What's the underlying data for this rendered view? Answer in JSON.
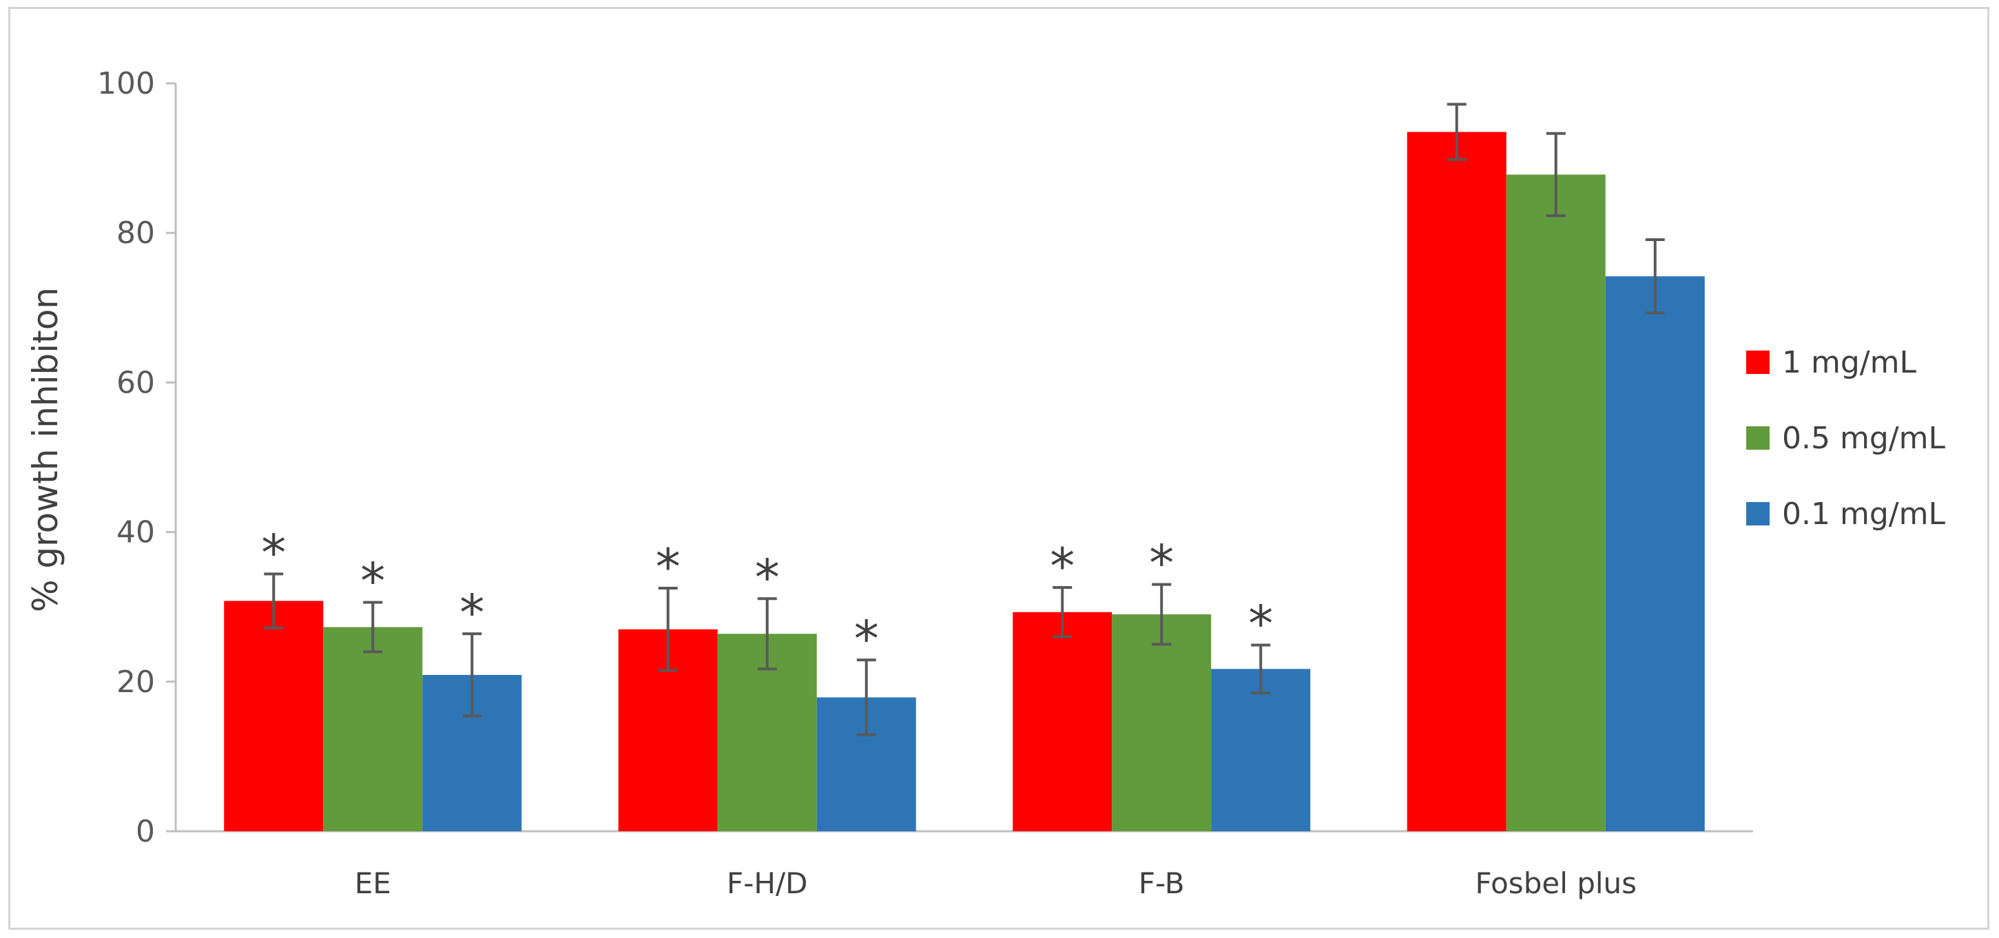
{
  "chart_data": {
    "type": "bar",
    "title": "",
    "xlabel": "",
    "ylabel": "% growth inhibiton",
    "ylim": [
      0,
      100
    ],
    "yticks": [
      0,
      20,
      40,
      60,
      80,
      100
    ],
    "grid": false,
    "legend_position": "right",
    "categories": [
      "EE",
      "F-H/D",
      "F-B",
      "Fosbel plus"
    ],
    "series": [
      {
        "name": "1 mg/mL",
        "color": "#ff0000",
        "values": [
          30.8,
          27.0,
          29.3,
          93.5
        ],
        "errors": [
          3.6,
          5.5,
          3.3,
          3.7
        ],
        "significance": [
          "*",
          "*",
          "*",
          ""
        ]
      },
      {
        "name": "0.5 mg/mL",
        "color": "#629b3e",
        "values": [
          27.3,
          26.4,
          29.0,
          87.8
        ],
        "errors": [
          3.3,
          4.7,
          4.0,
          5.5
        ],
        "significance": [
          "*",
          "*",
          "*",
          ""
        ]
      },
      {
        "name": "0.1 mg/mL",
        "color": "#2e75b6",
        "values": [
          20.9,
          17.9,
          21.7,
          74.2
        ],
        "errors": [
          5.5,
          5.0,
          3.2,
          4.9
        ],
        "significance": [
          "*",
          "*",
          "*",
          ""
        ]
      }
    ]
  }
}
